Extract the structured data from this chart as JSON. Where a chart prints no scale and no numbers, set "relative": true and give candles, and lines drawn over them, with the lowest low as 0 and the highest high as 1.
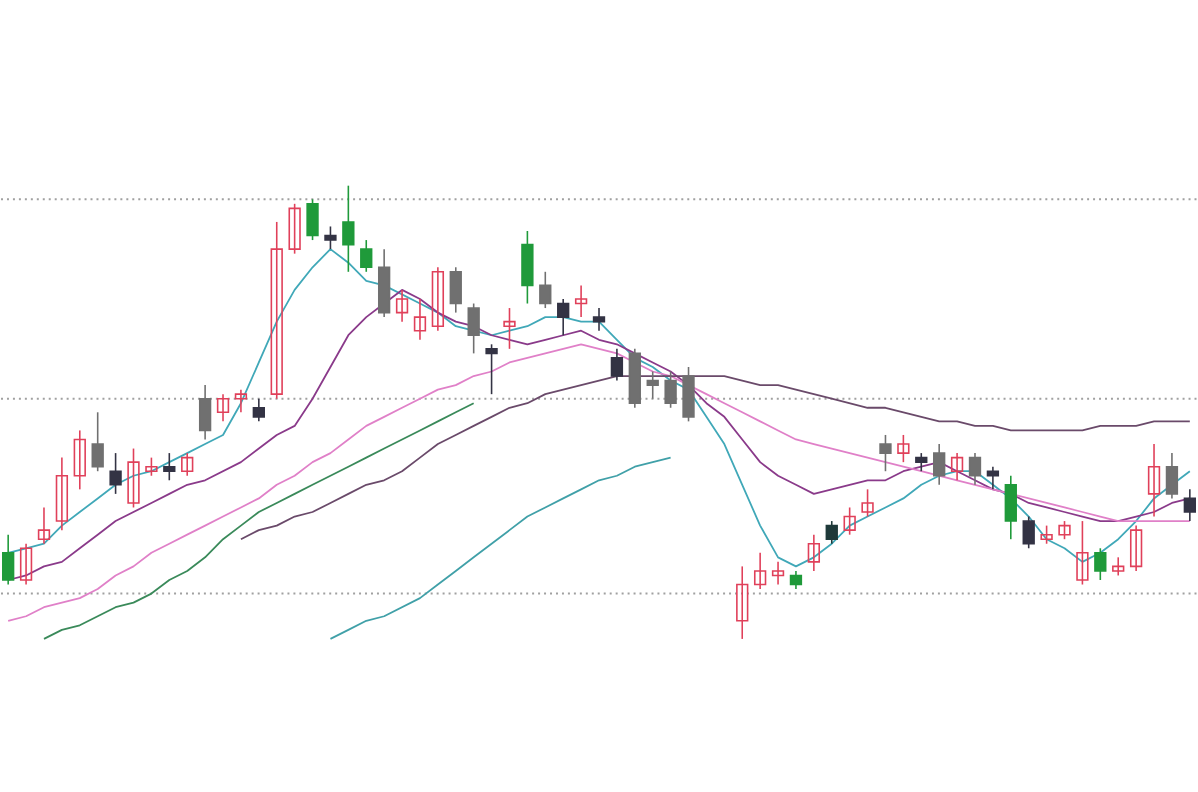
{
  "chart_data": {
    "type": "candlestick",
    "relative": true,
    "categories": [
      null,
      null,
      null,
      null,
      null,
      null,
      null,
      null,
      null,
      null,
      null,
      null,
      null,
      null,
      null,
      null,
      null,
      null,
      null,
      null,
      null,
      null,
      null,
      null,
      null,
      null,
      null,
      null,
      null,
      null,
      null,
      null,
      null,
      null,
      null,
      null,
      null,
      null,
      null,
      null,
      null,
      null,
      null,
      null,
      null,
      null,
      null,
      null,
      null,
      null,
      null,
      null,
      null,
      null,
      null,
      null,
      null,
      null,
      null,
      null,
      null,
      null,
      null,
      null,
      null,
      null,
      null
    ],
    "ohlc": [
      [
        0.19,
        0.23,
        0.12,
        0.13
      ],
      [
        0.13,
        0.21,
        0.12,
        0.2
      ],
      [
        0.22,
        0.29,
        0.21,
        0.24
      ],
      [
        0.26,
        0.4,
        0.24,
        0.36
      ],
      [
        0.36,
        0.46,
        0.33,
        0.44
      ],
      [
        0.43,
        0.5,
        0.37,
        0.38
      ],
      [
        0.37,
        0.41,
        0.32,
        0.34
      ],
      [
        0.3,
        0.42,
        0.29,
        0.39
      ],
      [
        0.37,
        0.4,
        0.36,
        0.38
      ],
      [
        0.38,
        0.41,
        0.35,
        0.37
      ],
      [
        0.37,
        0.41,
        0.36,
        0.4
      ],
      [
        0.53,
        0.56,
        0.44,
        0.46
      ],
      [
        0.5,
        0.54,
        0.48,
        0.53
      ],
      [
        0.53,
        0.55,
        0.5,
        0.54
      ],
      [
        0.51,
        0.53,
        0.48,
        0.49
      ],
      [
        0.54,
        0.92,
        0.53,
        0.86
      ],
      [
        0.86,
        0.96,
        0.85,
        0.95
      ],
      [
        0.96,
        0.97,
        0.88,
        0.89
      ],
      [
        0.89,
        0.91,
        0.86,
        0.88
      ],
      [
        0.92,
        1.0,
        0.81,
        0.87
      ],
      [
        0.86,
        0.88,
        0.81,
        0.82
      ],
      [
        0.82,
        0.86,
        0.71,
        0.72
      ],
      [
        0.72,
        0.77,
        0.7,
        0.75
      ],
      [
        0.68,
        0.75,
        0.66,
        0.71
      ],
      [
        0.69,
        0.82,
        0.68,
        0.81
      ],
      [
        0.81,
        0.82,
        0.72,
        0.74
      ],
      [
        0.73,
        0.74,
        0.63,
        0.67
      ],
      [
        0.64,
        0.65,
        0.54,
        0.63
      ],
      [
        0.69,
        0.73,
        0.64,
        0.7
      ],
      [
        0.87,
        0.9,
        0.74,
        0.78
      ],
      [
        0.78,
        0.81,
        0.73,
        0.74
      ],
      [
        0.74,
        0.75,
        0.67,
        0.71
      ],
      [
        0.74,
        0.78,
        0.71,
        0.75
      ],
      [
        0.71,
        0.73,
        0.68,
        0.7
      ],
      [
        0.62,
        0.64,
        0.57,
        0.58
      ],
      [
        0.63,
        0.64,
        0.51,
        0.52
      ],
      [
        0.57,
        0.59,
        0.53,
        0.56
      ],
      [
        0.57,
        0.59,
        0.51,
        0.52
      ],
      [
        0.58,
        0.6,
        0.48,
        0.49
      ],
      null,
      null,
      [
        0.04,
        0.16,
        0.0,
        0.12
      ],
      [
        0.12,
        0.19,
        0.11,
        0.15
      ],
      [
        0.14,
        0.17,
        0.12,
        0.15
      ],
      [
        0.14,
        0.15,
        0.11,
        0.12
      ],
      [
        0.17,
        0.23,
        0.15,
        0.21
      ],
      [
        0.25,
        0.26,
        0.21,
        0.22
      ],
      [
        0.24,
        0.29,
        0.23,
        0.27
      ],
      [
        0.28,
        0.33,
        0.27,
        0.3
      ],
      [
        0.43,
        0.45,
        0.37,
        0.41
      ],
      [
        0.41,
        0.45,
        0.39,
        0.43
      ],
      [
        0.4,
        0.41,
        0.37,
        0.39
      ],
      [
        0.41,
        0.43,
        0.34,
        0.36
      ],
      [
        0.37,
        0.41,
        0.35,
        0.4
      ],
      [
        0.4,
        0.41,
        0.34,
        0.36
      ],
      [
        0.37,
        0.38,
        0.33,
        0.36
      ],
      [
        0.34,
        0.36,
        0.22,
        0.26
      ],
      [
        0.26,
        0.27,
        0.2,
        0.21
      ],
      [
        0.22,
        0.25,
        0.21,
        0.23
      ],
      [
        0.23,
        0.26,
        0.22,
        0.25
      ],
      [
        0.13,
        0.26,
        0.12,
        0.19
      ],
      [
        0.19,
        0.2,
        0.13,
        0.15
      ],
      [
        0.15,
        0.18,
        0.14,
        0.16
      ],
      [
        0.16,
        0.25,
        0.15,
        0.24
      ],
      [
        0.32,
        0.43,
        0.27,
        0.38
      ],
      [
        0.38,
        0.41,
        0.31,
        0.32
      ],
      [
        0.31,
        0.33,
        0.26,
        0.28
      ]
    ],
    "colors": [
      "#1f9a3a",
      "#e0405a",
      "#e0405a",
      "#e0405a",
      "#e0405a",
      "#707070",
      "#333344",
      "#e0405a",
      "#e0405a",
      "#333344",
      "#e0405a",
      "#707070",
      "#e0405a",
      "#e0405a",
      "#333344",
      "#e0405a",
      "#e0405a",
      "#1f9a3a",
      "#333344",
      "#1f9a3a",
      "#1f9a3a",
      "#707070",
      "#e0405a",
      "#e0405a",
      "#e0405a",
      "#707070",
      "#707070",
      "#333344",
      "#e0405a",
      "#1f9a3a",
      "#707070",
      "#333344",
      "#e0405a",
      "#333344",
      "#333344",
      "#707070",
      "#707070",
      "#707070",
      "#707070",
      null,
      null,
      "#e0405a",
      "#e0405a",
      "#e0405a",
      "#1f9a3a",
      "#e0405a",
      "#1f3a3a",
      "#e0405a",
      "#e0405a",
      "#707070",
      "#e0405a",
      "#333344",
      "#707070",
      "#e0405a",
      "#707070",
      "#333344",
      "#1f9a3a",
      "#333344",
      "#e0405a",
      "#e0405a",
      "#e0405a",
      "#1f9a3a",
      "#e0405a",
      "#e0405a",
      "#e0405a",
      "#707070",
      "#333344"
    ],
    "series": [
      {
        "type": "line",
        "color": "#40a8b8",
        "values": [
          0.19,
          0.2,
          0.21,
          0.25,
          0.28,
          0.31,
          0.34,
          0.36,
          0.37,
          0.39,
          0.41,
          0.43,
          0.45,
          0.52,
          0.61,
          0.7,
          0.77,
          0.82,
          0.86,
          0.83,
          0.79,
          0.78,
          0.76,
          0.74,
          0.72,
          0.69,
          0.68,
          0.67,
          0.68,
          0.69,
          0.71,
          0.71,
          0.7,
          0.7,
          0.66,
          0.62,
          0.6,
          0.57,
          0.55,
          0.49,
          0.43,
          0.34,
          0.25,
          0.18,
          0.16,
          0.18,
          0.21,
          0.25,
          0.27,
          0.29,
          0.31,
          0.34,
          0.36,
          0.37,
          0.37,
          0.34,
          0.31,
          0.27,
          0.22,
          0.2,
          0.17,
          0.19,
          0.22,
          0.26,
          0.31,
          0.34,
          0.37
        ]
      },
      {
        "type": "line",
        "color": "#8a3a8a",
        "values": [
          0.13,
          0.14,
          0.16,
          0.17,
          0.2,
          0.23,
          0.26,
          0.28,
          0.3,
          0.32,
          0.34,
          0.35,
          0.37,
          0.39,
          0.42,
          0.45,
          0.47,
          0.53,
          0.6,
          0.67,
          0.71,
          0.74,
          0.77,
          0.75,
          0.72,
          0.7,
          0.69,
          0.67,
          0.66,
          0.65,
          0.66,
          0.67,
          0.68,
          0.66,
          0.65,
          0.63,
          0.61,
          0.59,
          0.56,
          0.52,
          0.49,
          0.44,
          0.39,
          0.36,
          0.34,
          0.32,
          0.33,
          0.34,
          0.35,
          0.35,
          0.37,
          0.38,
          0.39,
          0.37,
          0.35,
          0.33,
          0.32,
          0.3,
          0.29,
          0.28,
          0.27,
          0.26,
          0.26,
          0.27,
          0.28,
          0.3,
          0.31
        ]
      },
      {
        "type": "line",
        "color": "#e080c8",
        "values": [
          0.04,
          0.05,
          0.07,
          0.08,
          0.09,
          0.11,
          0.14,
          0.16,
          0.19,
          0.21,
          0.23,
          0.25,
          0.27,
          0.29,
          0.31,
          0.34,
          0.36,
          0.39,
          0.41,
          0.44,
          0.47,
          0.49,
          0.51,
          0.53,
          0.55,
          0.56,
          0.58,
          0.59,
          0.61,
          0.62,
          0.63,
          0.64,
          0.65,
          0.64,
          0.63,
          0.61,
          0.59,
          0.58,
          0.56,
          0.54,
          0.52,
          0.5,
          0.48,
          0.46,
          0.44,
          0.43,
          0.42,
          0.41,
          0.4,
          0.39,
          0.38,
          0.37,
          0.36,
          0.35,
          0.34,
          0.33,
          0.32,
          0.31,
          0.3,
          0.29,
          0.28,
          0.27,
          0.26,
          0.26,
          0.26,
          0.26,
          0.26
        ]
      },
      {
        "type": "line",
        "color": "#6a4a6a",
        "values": [
          null,
          null,
          null,
          null,
          null,
          null,
          null,
          null,
          null,
          null,
          null,
          null,
          null,
          0.22,
          0.24,
          0.25,
          0.27,
          0.28,
          0.3,
          0.32,
          0.34,
          0.35,
          0.37,
          0.4,
          0.43,
          0.45,
          0.47,
          0.49,
          0.51,
          0.52,
          0.54,
          0.55,
          0.56,
          0.57,
          0.58,
          0.58,
          0.58,
          0.58,
          0.58,
          0.58,
          0.58,
          0.57,
          0.56,
          0.56,
          0.55,
          0.54,
          0.53,
          0.52,
          0.51,
          0.51,
          0.5,
          0.49,
          0.48,
          0.48,
          0.47,
          0.47,
          0.46,
          0.46,
          0.46,
          0.46,
          0.46,
          0.47,
          0.47,
          0.47,
          0.48,
          0.48,
          0.48
        ]
      },
      {
        "type": "line",
        "color": "#3a8a5a",
        "values": [
          null,
          null,
          0.0,
          0.02,
          0.03,
          0.05,
          0.07,
          0.08,
          0.1,
          0.13,
          0.15,
          0.18,
          0.22,
          0.25,
          0.28,
          0.3,
          0.32,
          0.34,
          0.36,
          0.38,
          0.4,
          0.42,
          0.44,
          0.46,
          0.48,
          0.5,
          0.52,
          null,
          null,
          null,
          null,
          null,
          null,
          null,
          null,
          null,
          null,
          null,
          null,
          null,
          null,
          null,
          null,
          null,
          null,
          null,
          null,
          null,
          null,
          null,
          null,
          null,
          null,
          null,
          null,
          null,
          null,
          null,
          null,
          null,
          null,
          null,
          null,
          null,
          null,
          null,
          null
        ]
      },
      {
        "type": "line",
        "color": "#40a0a8",
        "values": [
          null,
          null,
          null,
          null,
          null,
          null,
          null,
          null,
          null,
          null,
          null,
          null,
          null,
          null,
          null,
          null,
          null,
          null,
          0.0,
          0.02,
          0.04,
          0.05,
          0.07,
          0.09,
          0.12,
          0.15,
          0.18,
          0.21,
          0.24,
          0.27,
          0.29,
          0.31,
          0.33,
          0.35,
          0.36,
          0.38,
          0.39,
          0.4,
          null,
          null,
          null,
          null,
          null,
          null,
          null,
          null,
          null,
          null,
          null,
          null,
          null,
          null,
          null,
          null,
          null,
          null,
          null,
          null,
          null,
          null,
          null,
          null,
          null,
          null,
          null,
          null,
          null
        ]
      }
    ],
    "ref_lines": [
      {
        "axis": "y",
        "value": 0.97,
        "color": "#a0a0a0",
        "line_style": "dotted"
      },
      {
        "axis": "y",
        "value": 0.53,
        "color": "#a0a0a0",
        "line_style": "dotted"
      },
      {
        "axis": "y",
        "value": 0.1,
        "color": "#a0a0a0",
        "line_style": "dotted"
      }
    ]
  }
}
